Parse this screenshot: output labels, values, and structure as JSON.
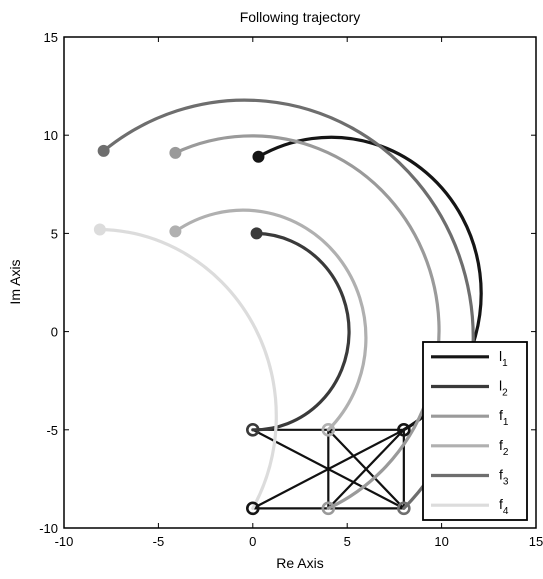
{
  "chart_data": {
    "type": "line",
    "title": "Following trajectory",
    "xlabel": "Re Axis",
    "ylabel": "Im Axis",
    "xlim": [
      -10,
      15
    ],
    "ylim": [
      -10,
      15
    ],
    "xticks": [
      "-10",
      "-5",
      "0",
      "5",
      "10",
      "15"
    ],
    "yticks": [
      "-10",
      "-5",
      "0",
      "5",
      "10",
      "15"
    ],
    "xtick_values": [
      -10,
      -5,
      0,
      5,
      10,
      15
    ],
    "ytick_values": [
      -10,
      -5,
      0,
      5,
      10,
      15
    ],
    "grid": false,
    "legend_position": "bottom-right",
    "series": [
      {
        "name": "l",
        "subscript": "1",
        "color": "#151515",
        "start": [
          0.3,
          8.9
        ],
        "end": [
          8,
          -5
        ],
        "arc_center": [
          0,
          2.0
        ],
        "radius": 7.0,
        "sweep": "clockwise"
      },
      {
        "name": "l",
        "subscript": "2",
        "color": "#3a3a3a",
        "start": [
          0.2,
          5.0
        ],
        "end": [
          0,
          -5
        ],
        "arc_center": [
          0,
          0
        ],
        "radius": 5.0,
        "sweep": "clockwise"
      },
      {
        "name": "f",
        "subscript": "1",
        "color": "#9a9a9a",
        "start": [
          -4.1,
          9.1
        ],
        "end": [
          4,
          -9
        ],
        "arc_center": [
          0,
          0
        ],
        "radius": 9.8,
        "sweep": "clockwise"
      },
      {
        "name": "f",
        "subscript": "2",
        "color": "#b0b0b0",
        "start": [
          -4.1,
          5.1
        ],
        "end": [
          4,
          -5
        ],
        "arc_center": [
          0,
          0
        ],
        "radius": 6.5,
        "sweep": "clockwise"
      },
      {
        "name": "f",
        "subscript": "3",
        "color": "#6e6e6e",
        "start": [
          -7.9,
          9.2
        ],
        "end": [
          8,
          -9
        ],
        "arc_center": [
          0,
          0
        ],
        "radius": 12.1,
        "sweep": "clockwise"
      },
      {
        "name": "f",
        "subscript": "4",
        "color": "#dcdcdc",
        "start": [
          -8.1,
          5.2
        ],
        "end": [
          0,
          -9
        ],
        "arc_center": [
          0,
          0
        ],
        "radius": 9.5,
        "sweep": "clockwise"
      }
    ],
    "formation_nodes": [
      {
        "x": 0,
        "y": -5,
        "color": "#3a3a3a"
      },
      {
        "x": 0,
        "y": -9,
        "color": "#151515"
      },
      {
        "x": 4,
        "y": -5,
        "color": "#b0b0b0"
      },
      {
        "x": 4,
        "y": -9,
        "color": "#9a9a9a"
      },
      {
        "x": 8,
        "y": -5,
        "color": "#151515"
      },
      {
        "x": 8,
        "y": -9,
        "color": "#6e6e6e"
      }
    ],
    "formation_edges": [
      [
        [
          0,
          -5
        ],
        [
          8,
          -5
        ]
      ],
      [
        [
          0,
          -9
        ],
        [
          8,
          -9
        ]
      ],
      [
        [
          4,
          -5
        ],
        [
          4,
          -9
        ]
      ],
      [
        [
          8,
          -5
        ],
        [
          8,
          -9
        ]
      ],
      [
        [
          0,
          -5
        ],
        [
          8,
          -9
        ]
      ],
      [
        [
          0,
          -9
        ],
        [
          8,
          -5
        ]
      ],
      [
        [
          4,
          -5
        ],
        [
          8,
          -9
        ]
      ],
      [
        [
          4,
          -9
        ],
        [
          8,
          -5
        ]
      ]
    ]
  }
}
